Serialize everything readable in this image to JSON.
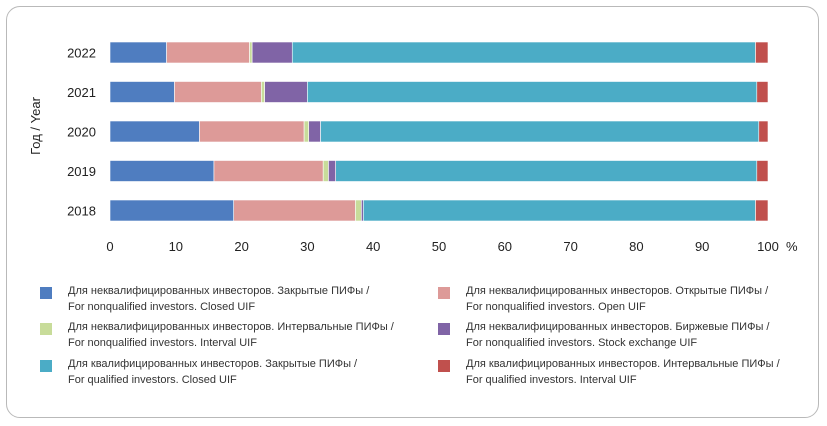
{
  "chart_data": {
    "type": "bar",
    "orientation": "horizontal",
    "stacked": true,
    "ylabel": "Год / Year",
    "xlabel": "",
    "x_unit": "%",
    "xlim": [
      0,
      100
    ],
    "x_ticks": [
      0,
      10,
      20,
      30,
      40,
      50,
      60,
      70,
      80,
      90,
      100
    ],
    "categories": [
      "2022",
      "2021",
      "2020",
      "2019",
      "2018"
    ],
    "grid": false,
    "legend_position": "bottom",
    "series": [
      {
        "name_ru": "Для неквалифицированных инвесторов. Закрытые ПИФы /",
        "name_en": "For nonqualified investors. Closed UIF",
        "color": "#4F7DC0",
        "values": [
          8.6,
          9.8,
          13.6,
          15.8,
          18.8
        ]
      },
      {
        "name_ru": "Для неквалифицированных инвесторов. Открытые ПИФы /",
        "name_en": "For nonqualified investors. Open UIF",
        "color": "#DD9A98",
        "values": [
          12.6,
          13.2,
          15.9,
          16.6,
          18.5
        ]
      },
      {
        "name_ru": "Для неквалифицированных инвесторов. Интервальные ПИФы /",
        "name_en": "For nonqualified investors. Interval UIF",
        "color": "#C8DC9A",
        "values": [
          0.4,
          0.5,
          0.7,
          0.8,
          0.9
        ]
      },
      {
        "name_ru": "Для неквалифицированных инвесторов. Биржевые ПИФы /",
        "name_en": "For nonqualified investors. Stock exchange UIF",
        "color": "#8064A6",
        "values": [
          6.1,
          6.5,
          1.8,
          1.1,
          0.3
        ]
      },
      {
        "name_ru": "Для квалифицированных инвесторов. Закрытые ПИФы /",
        "name_en": "For qualified investors. Closed UIF",
        "color": "#4BACC6",
        "values": [
          70.4,
          68.3,
          66.6,
          64.0,
          59.6
        ]
      },
      {
        "name_ru": "Для квалифицированных инвесторов. Интервальные ПИФы /",
        "name_en": "For qualified investors. Interval UIF",
        "color": "#C0504D",
        "values": [
          1.9,
          1.7,
          1.4,
          1.7,
          1.9
        ]
      }
    ]
  }
}
